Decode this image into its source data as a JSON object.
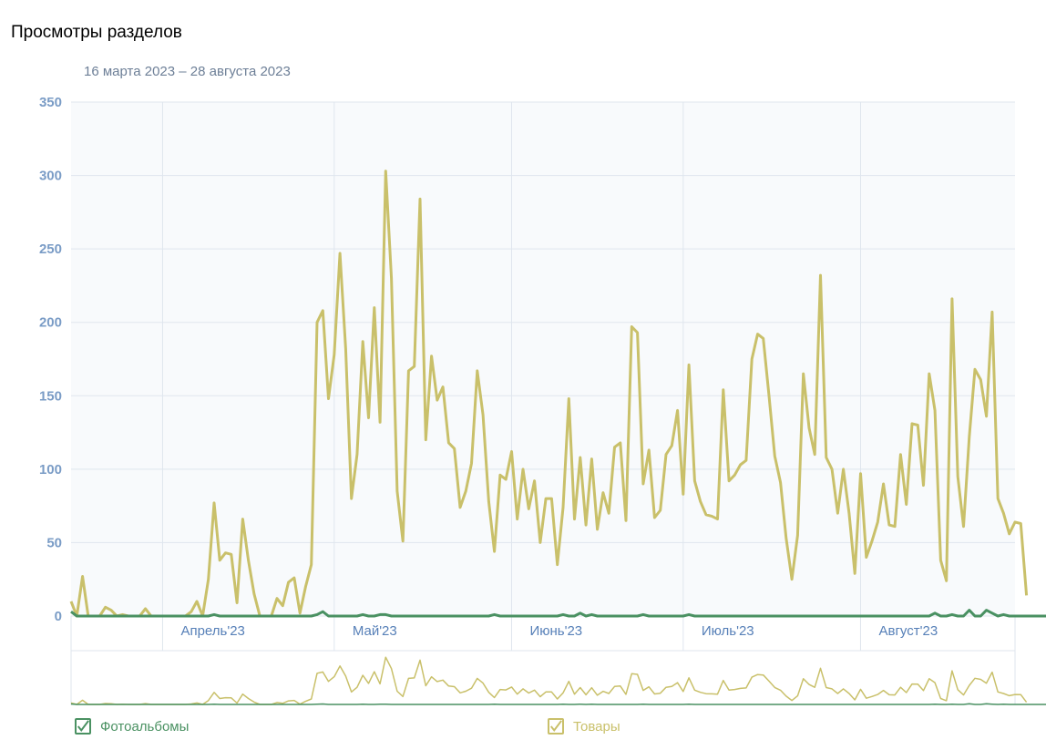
{
  "title": "Просмотры разделов",
  "subtitle": "16 марта 2023 – 28 августа 2023",
  "colors": {
    "photo": "#4a9162",
    "goods": "#c9c06a",
    "grid": "#dfe6ee",
    "axis_text": "#7a9cc6",
    "month_text": "#5780b8",
    "plot_bg": "#f8fafc"
  },
  "chart_data": {
    "type": "line",
    "title": "Просмотры разделов",
    "xlabel": "",
    "ylabel": "",
    "ylim": [
      0,
      350
    ],
    "yticks": [
      "350",
      "300",
      "250",
      "200",
      "150",
      "100",
      "50",
      "0"
    ],
    "x_range": [
      "2023-03-16",
      "2023-08-28"
    ],
    "month_ticks": [
      {
        "date": "2023-04-01",
        "label": "Апрель'23"
      },
      {
        "date": "2023-05-01",
        "label": "Май'23"
      },
      {
        "date": "2023-06-01",
        "label": "Июнь'23"
      },
      {
        "date": "2023-07-01",
        "label": "Июль'23"
      },
      {
        "date": "2023-08-01",
        "label": "Август'23"
      }
    ],
    "grid": true,
    "legend_position": "bottom",
    "series": [
      {
        "name": "Фотоальбомы",
        "values": [
          3,
          0,
          0,
          0,
          0,
          0,
          0,
          0,
          0,
          0,
          0,
          0,
          0,
          0,
          0,
          0,
          0,
          0,
          0,
          0,
          0,
          0,
          0,
          0,
          0,
          1,
          0,
          0,
          0,
          0,
          0,
          0,
          0,
          0,
          0,
          0,
          0,
          0,
          0,
          0,
          0,
          0,
          0,
          1,
          3,
          0,
          0,
          0,
          0,
          0,
          0,
          1,
          0,
          0,
          1,
          1,
          0,
          0,
          0,
          0,
          0,
          0,
          0,
          0,
          0,
          0,
          0,
          0,
          0,
          0,
          0,
          0,
          0,
          0,
          1,
          0,
          0,
          0,
          0,
          0,
          0,
          0,
          0,
          0,
          0,
          0,
          1,
          0,
          0,
          2,
          0,
          1,
          0,
          0,
          0,
          0,
          0,
          0,
          0,
          0,
          1,
          0,
          0,
          0,
          0,
          0,
          0,
          0,
          1,
          0,
          0,
          0,
          0,
          0,
          0,
          0,
          0,
          0,
          0,
          0,
          0,
          0,
          0,
          0,
          0,
          0,
          0,
          0,
          0,
          0,
          0,
          0,
          0,
          0,
          0,
          0,
          0,
          0,
          0,
          0,
          0,
          0,
          0,
          0,
          0,
          0,
          0,
          0,
          0,
          0,
          0,
          2,
          0,
          0,
          1,
          0,
          0,
          4,
          0,
          0,
          4,
          2,
          0,
          1,
          0,
          0,
          0,
          0,
          0,
          0,
          0,
          0,
          3,
          0,
          2
        ]
      },
      {
        "name": "Товары",
        "values": [
          10,
          0,
          27,
          0,
          0,
          0,
          6,
          4,
          0,
          1,
          0,
          0,
          0,
          5,
          0,
          0,
          0,
          0,
          0,
          0,
          0,
          3,
          10,
          0,
          25,
          77,
          38,
          43,
          42,
          9,
          66,
          38,
          15,
          0,
          0,
          0,
          12,
          7,
          23,
          26,
          2,
          20,
          35,
          200,
          208,
          148,
          178,
          247,
          182,
          80,
          110,
          187,
          135,
          210,
          132,
          303,
          230,
          85,
          51,
          167,
          170,
          284,
          120,
          177,
          147,
          156,
          118,
          114,
          74,
          85,
          104,
          167,
          137,
          78,
          44,
          96,
          93,
          112,
          66,
          100,
          73,
          92,
          50,
          80,
          80,
          35,
          74,
          148,
          66,
          108,
          62,
          107,
          59,
          84,
          70,
          115,
          118,
          65,
          197,
          193,
          90,
          113,
          67,
          72,
          110,
          116,
          140,
          83,
          171,
          92,
          78,
          69,
          68,
          66,
          154,
          92,
          96,
          103,
          106,
          175,
          192,
          189,
          150,
          109,
          91,
          53,
          25,
          55,
          165,
          128,
          110,
          232,
          108,
          100,
          70,
          100,
          70,
          29,
          97,
          40,
          51,
          64,
          90,
          62,
          61,
          110,
          76,
          131,
          130,
          89,
          165,
          140,
          38,
          24,
          216,
          95,
          61,
          122,
          168,
          161,
          136,
          207,
          80,
          70,
          56,
          64,
          63,
          14
        ]
      }
    ]
  },
  "legend": {
    "photo_label": "Фотоальбомы",
    "goods_label": "Товары"
  }
}
